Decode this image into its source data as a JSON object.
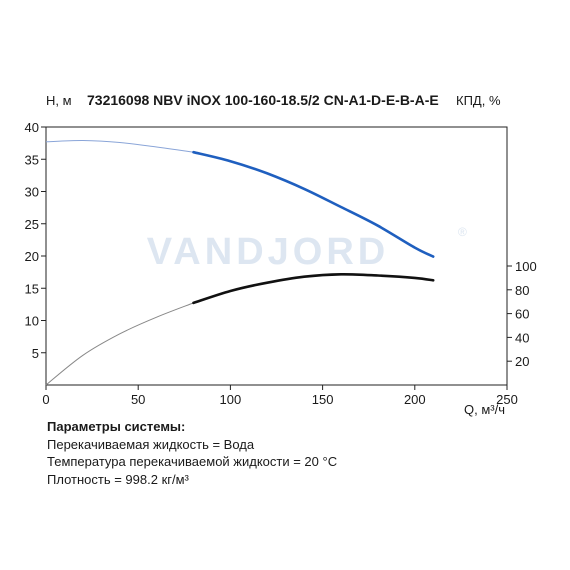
{
  "chart_data": {
    "type": "line",
    "title": "73216098 NBV iNOX 100-160-18.5/2 CN-A1-D-E-B-A-E",
    "xlabel": "Q, м³/ч",
    "ylabel": "H, м",
    "y2label": "КПД, %",
    "xlim": [
      0,
      250
    ],
    "ylim": [
      0,
      40
    ],
    "y2lim": [
      0,
      100
    ],
    "x_ticks": [
      0,
      50,
      100,
      150,
      200,
      250
    ],
    "y_ticks": [
      5,
      10,
      15,
      20,
      25,
      30,
      35,
      40
    ],
    "y2_ticks": [
      20,
      40,
      60,
      80,
      100
    ],
    "grid": false,
    "watermark": "VANDJORD",
    "watermark_mark": "®",
    "series": [
      {
        "axis": "left",
        "color": "#1f5fbf",
        "extrapolated_color": "#8aa5d8",
        "operating_range": [
          80,
          210
        ],
        "x": [
          0,
          20,
          40,
          60,
          80,
          100,
          120,
          140,
          160,
          180,
          200,
          210
        ],
        "y": [
          37.7,
          37.9,
          37.6,
          36.9,
          36.1,
          34.7,
          32.8,
          30.4,
          27.6,
          24.7,
          21.3,
          19.9
        ]
      },
      {
        "axis": "right",
        "color": "#111111",
        "extrapolated_color": "#888888",
        "operating_range": [
          80,
          210
        ],
        "x": [
          0,
          20,
          40,
          60,
          80,
          100,
          120,
          140,
          160,
          180,
          200,
          210
        ],
        "y": [
          0,
          25,
          43,
          57,
          69,
          79,
          86,
          91,
          93,
          92,
          90,
          88
        ]
      }
    ]
  },
  "params": {
    "header": "Параметры системы:",
    "lines": [
      "Перекачиваемая жидкость = Вода",
      "Температура перекачиваемой жидкости = 20 °C",
      "Плотность = 998.2 кг/м³"
    ]
  }
}
